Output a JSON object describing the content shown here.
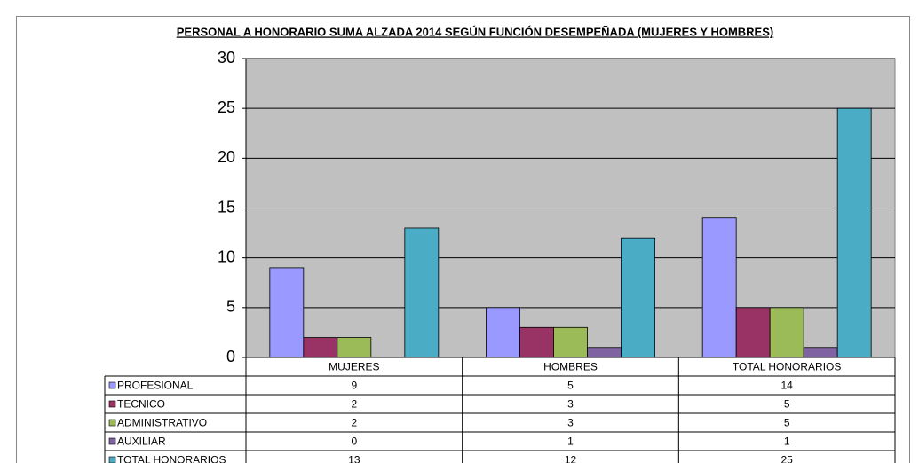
{
  "chart_data": {
    "type": "bar",
    "title": "PERSONAL A HONORARIO  SUMA ALZADA  2014 SEGÚN FUNCIÓN  DESEMPEÑADA (MUJERES Y HOMBRES)",
    "categories": [
      "MUJERES",
      "HOMBRES",
      "TOTAL HONORARIOS"
    ],
    "series": [
      {
        "name": "PROFESIONAL",
        "color": "#9999ff",
        "values": [
          9,
          5,
          14
        ]
      },
      {
        "name": "TECNICO",
        "color": "#993366",
        "values": [
          2,
          3,
          5
        ]
      },
      {
        "name": "ADMINISTRATIVO",
        "color": "#9bbb59",
        "values": [
          2,
          3,
          5
        ]
      },
      {
        "name": "AUXILIAR",
        "color": "#8064a2",
        "values": [
          0,
          1,
          1
        ]
      },
      {
        "name": "TOTAL HONORARIOS",
        "color": "#4bacc6",
        "values": [
          13,
          12,
          25
        ]
      }
    ],
    "ylim": [
      0,
      30
    ],
    "yticks": [
      0,
      5,
      10,
      15,
      20,
      25,
      30
    ],
    "grid": true,
    "plot_background": "#c0c0c0"
  }
}
